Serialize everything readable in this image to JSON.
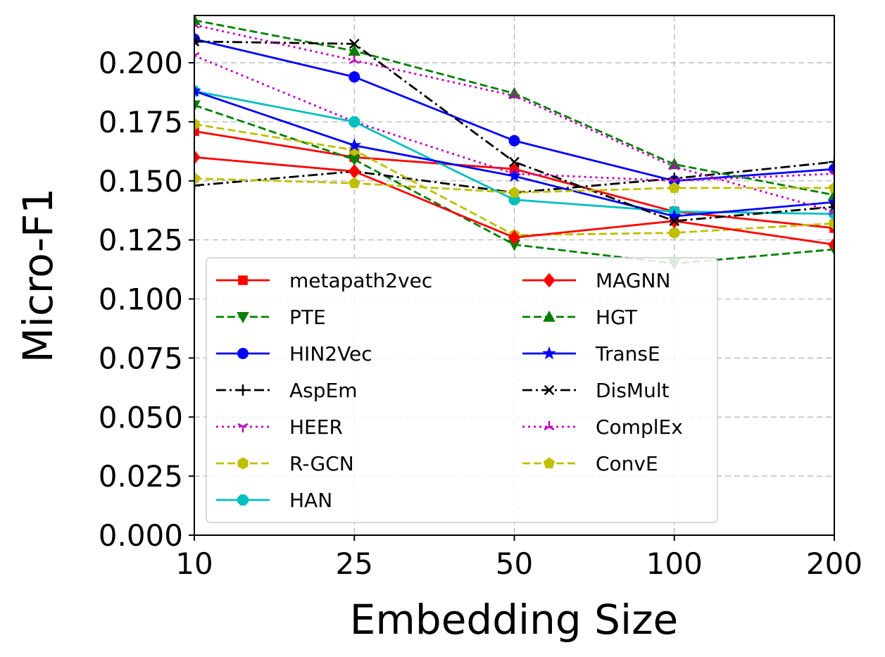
{
  "chart_data": {
    "type": "line",
    "title": "",
    "xlabel": "Embedding Size",
    "ylabel": "Micro-F1",
    "categories": [
      "10",
      "25",
      "50",
      "100",
      "200"
    ],
    "ylim": [
      0.0,
      0.22
    ],
    "yticks": [
      "0.000",
      "0.025",
      "0.050",
      "0.075",
      "0.100",
      "0.125",
      "0.150",
      "0.175",
      "0.200"
    ],
    "ytick_values": [
      0.0,
      0.025,
      0.05,
      0.075,
      0.1,
      0.125,
      0.15,
      0.175,
      0.2
    ],
    "grid": true,
    "legend_position": "lower-left",
    "series": [
      {
        "name": "metapath2vec",
        "color": "#ff0000",
        "dash": "solid",
        "marker": "square",
        "values": [
          0.171,
          0.16,
          0.155,
          0.137,
          0.13
        ]
      },
      {
        "name": "PTE",
        "color": "#008000",
        "dash": "dashed",
        "marker": "triangle-down",
        "values": [
          0.182,
          0.159,
          0.123,
          0.115,
          0.121
        ]
      },
      {
        "name": "HIN2Vec",
        "color": "#0000ff",
        "dash": "solid",
        "marker": "circle",
        "values": [
          0.21,
          0.194,
          0.167,
          0.15,
          0.155
        ]
      },
      {
        "name": "AspEm",
        "color": "#000000",
        "dash": "dashdot",
        "marker": "plus",
        "values": [
          0.148,
          0.154,
          0.145,
          0.151,
          0.158
        ]
      },
      {
        "name": "HEER",
        "color": "#bf00bf",
        "dash": "dotted",
        "marker": "tri-down",
        "values": [
          0.203,
          0.175,
          0.153,
          0.15,
          0.153
        ]
      },
      {
        "name": "R-GCN",
        "color": "#bfbf00",
        "dash": "dashed",
        "marker": "hexagon",
        "values": [
          0.174,
          0.163,
          0.127,
          0.128,
          0.132
        ]
      },
      {
        "name": "HAN",
        "color": "#00bfbf",
        "dash": "solid",
        "marker": "octagon",
        "values": [
          0.188,
          0.175,
          0.142,
          0.137,
          0.136
        ]
      },
      {
        "name": "MAGNN",
        "color": "#ff0000",
        "dash": "solid",
        "marker": "diamond",
        "values": [
          0.16,
          0.154,
          0.126,
          0.133,
          0.123
        ]
      },
      {
        "name": "HGT",
        "color": "#008000",
        "dash": "dashed",
        "marker": "triangle-up",
        "values": [
          0.218,
          0.205,
          0.187,
          0.157,
          0.144
        ]
      },
      {
        "name": "TransE",
        "color": "#0000ff",
        "dash": "solid",
        "marker": "star",
        "values": [
          0.188,
          0.165,
          0.152,
          0.135,
          0.141
        ]
      },
      {
        "name": "DisMult",
        "color": "#000000",
        "dash": "dashdot",
        "marker": "x",
        "values": [
          0.209,
          0.208,
          0.158,
          0.133,
          0.139
        ]
      },
      {
        "name": "ComplEx",
        "color": "#bf00bf",
        "dash": "dotted",
        "marker": "tri-up",
        "values": [
          0.216,
          0.201,
          0.186,
          0.156,
          0.137
        ]
      },
      {
        "name": "ConvE",
        "color": "#bfbf00",
        "dash": "dashed",
        "marker": "pentagon",
        "values": [
          0.151,
          0.149,
          0.145,
          0.147,
          0.147
        ]
      }
    ]
  }
}
